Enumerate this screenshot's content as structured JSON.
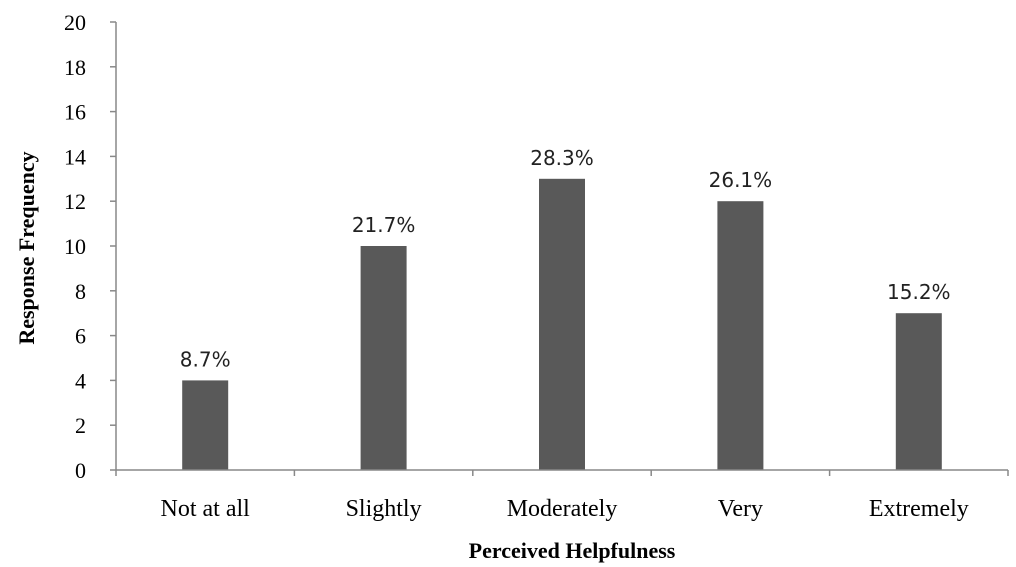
{
  "chart_data": {
    "type": "bar",
    "categories": [
      "Not at all",
      "Slightly",
      "Moderately",
      "Very",
      "Extremely"
    ],
    "values": [
      4,
      10,
      13,
      12,
      7
    ],
    "data_labels": [
      "8.7%",
      "21.7%",
      "28.3%",
      "26.1%",
      "15.2%"
    ],
    "title": "",
    "xlabel": "Perceived Helpfulness",
    "ylabel": "Response Frequency",
    "ylim": [
      0,
      20
    ],
    "yticks": [
      0,
      2,
      4,
      6,
      8,
      10,
      12,
      14,
      16,
      18,
      20
    ],
    "grid": false,
    "legend": "none",
    "colors": {
      "bar": "#595959",
      "axis": "#888888",
      "text": "#000000"
    }
  }
}
